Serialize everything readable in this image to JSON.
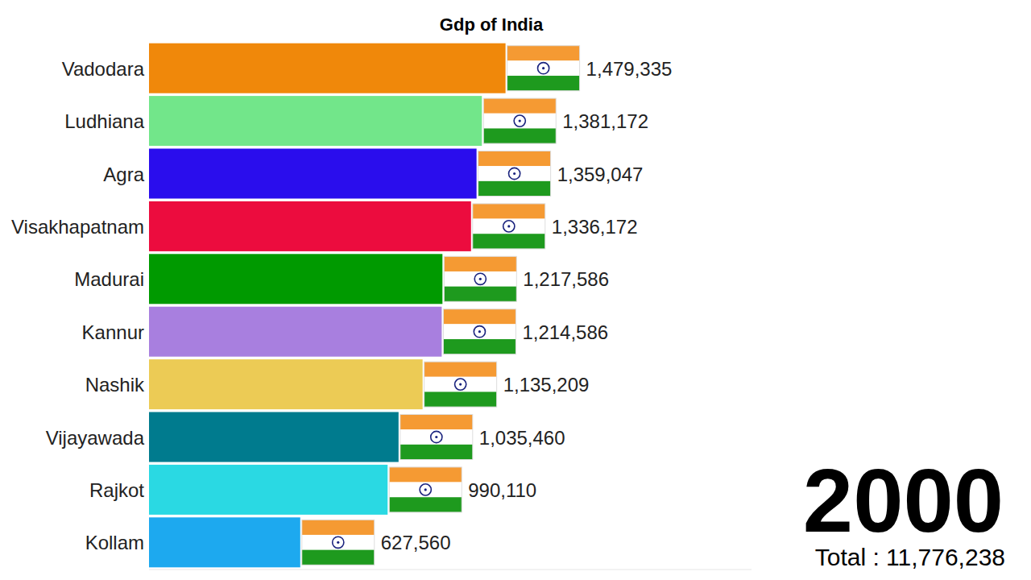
{
  "chart_data": {
    "type": "bar",
    "title": "Gdp of India",
    "orientation": "horizontal",
    "categories": [
      "Vadodara",
      "Ludhiana",
      "Agra",
      "Visakhapatnam",
      "Madurai",
      "Kannur",
      "Nashik",
      "Vijayawada",
      "Rajkot",
      "Kollam"
    ],
    "values": [
      1479335,
      1381172,
      1359047,
      1336172,
      1217586,
      1214586,
      1135209,
      1035460,
      990110,
      627560
    ],
    "value_labels": [
      "1,479,335",
      "1,381,172",
      "1,359,047",
      "1,336,172",
      "1,217,586",
      "1,214,586",
      "1,135,209",
      "1,035,460",
      "990,110",
      "627,560"
    ],
    "colors": [
      "#f0880a",
      "#72e68a",
      "#2a0ded",
      "#ec0c3e",
      "#009a00",
      "#a87fdf",
      "#eccb55",
      "#007b8e",
      "#2ad9e3",
      "#1da9ef"
    ],
    "xlim": [
      0,
      2500000
    ],
    "xticks": [],
    "tick_labels": "y",
    "data_labels": true,
    "grid": false,
    "annotations": [
      {
        "text": "2000"
      },
      {
        "text": "Total : 11,776,238"
      }
    ]
  }
}
